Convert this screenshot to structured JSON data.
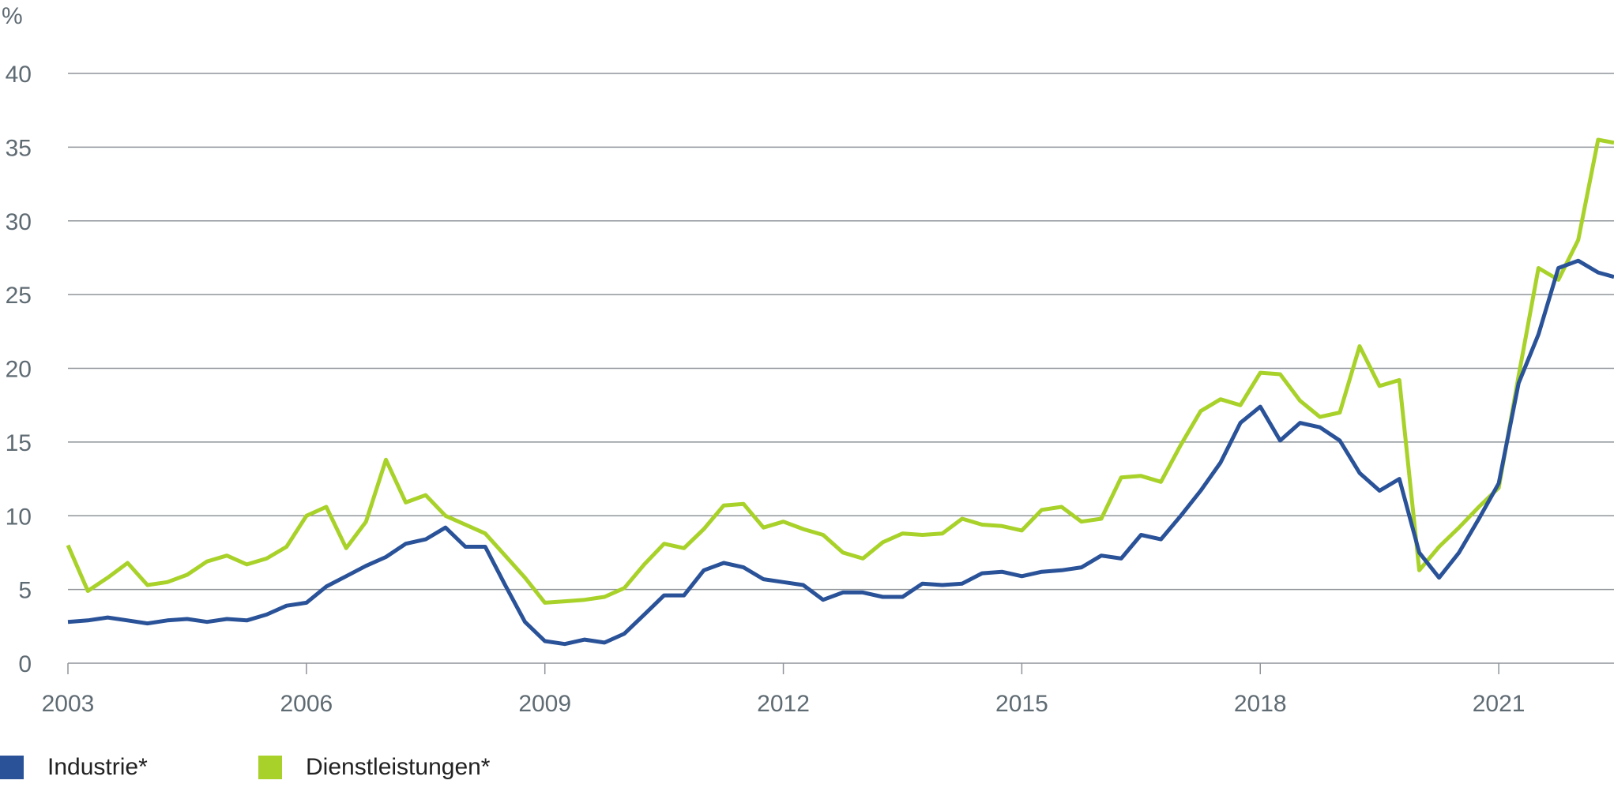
{
  "chart_data": {
    "type": "line",
    "ylabel": "%",
    "ylim": [
      0,
      40
    ],
    "yticks": [
      0,
      5,
      10,
      15,
      20,
      25,
      30,
      35,
      40
    ],
    "xlim": [
      2003,
      2022.45
    ],
    "xticks": [
      2003,
      2006,
      2009,
      2012,
      2015,
      2018,
      2021
    ],
    "grid": true,
    "legend_position": "bottom-left",
    "series": [
      {
        "name": "Industrie*",
        "color": "#2a5298",
        "x": [
          2003.0,
          2003.25,
          2003.5,
          2003.75,
          2004.0,
          2004.25,
          2004.5,
          2004.75,
          2005.0,
          2005.25,
          2005.5,
          2005.75,
          2006.0,
          2006.25,
          2006.5,
          2006.75,
          2007.0,
          2007.25,
          2007.5,
          2007.75,
          2008.0,
          2008.25,
          2008.5,
          2008.75,
          2009.0,
          2009.25,
          2009.5,
          2009.75,
          2010.0,
          2010.25,
          2010.5,
          2010.75,
          2011.0,
          2011.25,
          2011.5,
          2011.75,
          2012.0,
          2012.25,
          2012.5,
          2012.75,
          2013.0,
          2013.25,
          2013.5,
          2013.75,
          2014.0,
          2014.25,
          2014.5,
          2014.75,
          2015.0,
          2015.25,
          2015.5,
          2015.75,
          2016.0,
          2016.25,
          2016.5,
          2016.75,
          2017.0,
          2017.25,
          2017.5,
          2017.75,
          2018.0,
          2018.25,
          2018.5,
          2018.75,
          2019.0,
          2019.25,
          2019.5,
          2019.75,
          2020.0,
          2020.25,
          2020.5,
          2020.75,
          2021.0,
          2021.25,
          2021.5,
          2021.75,
          2022.0,
          2022.25,
          2022.45
        ],
        "values": [
          2.8,
          2.9,
          3.1,
          2.9,
          2.7,
          2.9,
          3.0,
          2.8,
          3.0,
          2.9,
          3.3,
          3.9,
          4.1,
          5.2,
          5.9,
          6.6,
          7.2,
          8.1,
          8.4,
          9.2,
          7.9,
          7.9,
          5.3,
          2.8,
          1.5,
          1.3,
          1.6,
          1.4,
          2.0,
          3.3,
          4.6,
          4.6,
          6.3,
          6.8,
          6.5,
          5.7,
          5.5,
          5.3,
          4.3,
          4.8,
          4.8,
          4.5,
          4.5,
          5.4,
          5.3,
          5.4,
          6.1,
          6.2,
          5.9,
          6.2,
          6.3,
          6.5,
          7.3,
          7.1,
          8.7,
          8.4,
          10.0,
          11.7,
          13.6,
          16.3,
          17.4,
          15.1,
          16.3,
          16.0,
          15.1,
          12.9,
          11.7,
          12.5,
          7.5,
          5.8,
          7.5,
          9.8,
          12.2,
          19.0,
          22.3,
          26.8,
          27.3,
          26.5,
          26.2
        ]
      },
      {
        "name": "Dienstleistungen*",
        "color": "#a8d22a",
        "x": [
          2003.0,
          2003.25,
          2003.5,
          2003.75,
          2004.0,
          2004.25,
          2004.5,
          2004.75,
          2005.0,
          2005.25,
          2005.5,
          2005.75,
          2006.0,
          2006.25,
          2006.5,
          2006.75,
          2007.0,
          2007.25,
          2007.5,
          2007.75,
          2008.0,
          2008.25,
          2008.5,
          2008.75,
          2009.0,
          2009.25,
          2009.5,
          2009.75,
          2010.0,
          2010.25,
          2010.5,
          2010.75,
          2011.0,
          2011.25,
          2011.5,
          2011.75,
          2012.0,
          2012.25,
          2012.5,
          2012.75,
          2013.0,
          2013.25,
          2013.5,
          2013.75,
          2014.0,
          2014.25,
          2014.5,
          2014.75,
          2015.0,
          2015.25,
          2015.5,
          2015.75,
          2016.0,
          2016.25,
          2016.5,
          2016.75,
          2017.0,
          2017.25,
          2017.5,
          2017.75,
          2018.0,
          2018.25,
          2018.5,
          2018.75,
          2019.0,
          2019.25,
          2019.5,
          2019.75,
          2020.0,
          2020.25,
          2020.5,
          2020.75,
          2021.0,
          2021.25,
          2021.5,
          2021.75,
          2022.0,
          2022.25,
          2022.45
        ],
        "values": [
          8.0,
          4.9,
          5.8,
          6.8,
          5.3,
          5.5,
          6.0,
          6.9,
          7.3,
          6.7,
          7.1,
          7.9,
          10.0,
          10.6,
          7.8,
          9.6,
          13.8,
          10.9,
          11.4,
          10.0,
          9.4,
          8.8,
          7.3,
          5.8,
          4.1,
          4.2,
          4.3,
          4.5,
          5.1,
          6.7,
          8.1,
          7.8,
          9.1,
          10.7,
          10.8,
          9.2,
          9.6,
          9.1,
          8.7,
          7.5,
          7.1,
          8.2,
          8.8,
          8.7,
          8.8,
          9.8,
          9.4,
          9.3,
          9.0,
          10.4,
          10.6,
          9.6,
          9.8,
          12.6,
          12.7,
          12.3,
          14.8,
          17.1,
          17.9,
          17.5,
          19.7,
          19.6,
          17.8,
          16.7,
          17.0,
          21.5,
          18.8,
          19.2,
          6.3,
          7.9,
          9.2,
          10.6,
          11.9,
          19.5,
          26.8,
          26.0,
          28.7,
          35.5,
          35.3
        ]
      }
    ]
  }
}
